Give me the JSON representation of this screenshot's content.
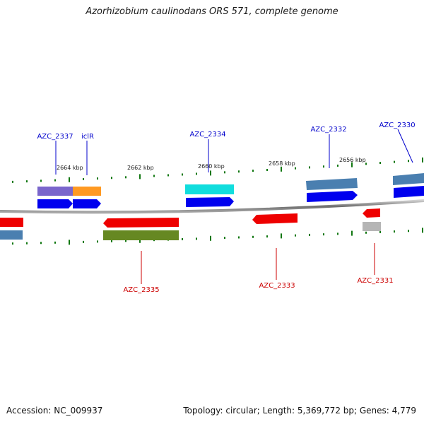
{
  "title": "Azorhizobium caulinodans ORS 571, complete genome",
  "footer": {
    "accession": "Accession: NC_009937",
    "summary": "Topology: circular; Length: 5,369,772 bp; Genes: 4,779"
  },
  "position_labels": [
    "2664 kbp",
    "2662 kbp",
    "2660 kbp",
    "2658 kbp",
    "2656 kbp"
  ],
  "gene_labels": {
    "top": [
      "AZC_2337",
      "iclR",
      "AZC_2334",
      "AZC_2332",
      "AZC_2330"
    ],
    "bottom": [
      "AZC_2335",
      "AZC_2333",
      "AZC_2331"
    ]
  },
  "colors": {
    "forward_gene": "#0000ee",
    "reverse_gene": "#ee0000",
    "label_forward": "#0000cc",
    "label_reverse": "#cc0000",
    "tick": "#117711",
    "backbone": "#777777",
    "feature_purple": "#7a66cc",
    "feature_orange": "#ff9922",
    "feature_cyan": "#11dddd",
    "feature_steelblue": "#4a7fb0",
    "feature_olive": "#668822",
    "feature_grey": "#b5b5b5"
  }
}
